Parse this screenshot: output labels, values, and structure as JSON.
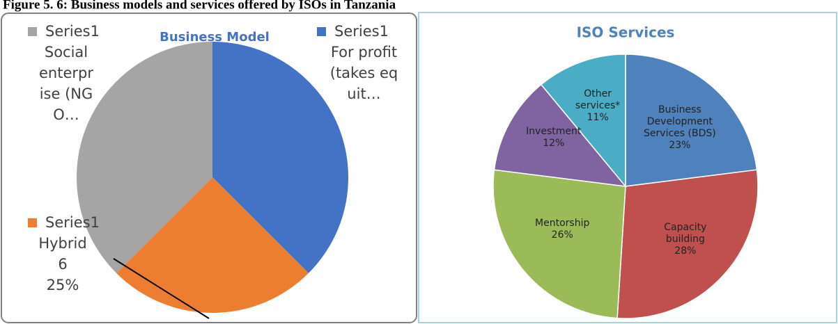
{
  "figure_title": "Figure 5. 6: Business models and services offered by ISOs in Tanzania",
  "chart_data": [
    {
      "type": "pie",
      "title": "Business Model",
      "series_name": "Series1",
      "categories": [
        "For profit (takes equit…",
        "Hybrid",
        "Social enterprise (NGO…"
      ],
      "values": [
        9,
        6,
        9
      ],
      "value_labels": [
        null,
        "6",
        null
      ],
      "percent_labels": [
        null,
        "25%",
        null
      ],
      "colors": [
        "#4472c4",
        "#ed7d31",
        "#a5a5a5"
      ]
    },
    {
      "type": "pie",
      "title": "ISO Services",
      "categories": [
        "Business Development Services (BDS)",
        "Capacity building",
        "Mentorship",
        "Investment",
        "Other services*"
      ],
      "values": [
        23,
        28,
        26,
        12,
        11
      ],
      "value_labels": [
        "23%",
        "28%",
        "26%",
        "12%",
        "11%"
      ],
      "colors": [
        "#4f81bd",
        "#c0504d",
        "#9bbb59",
        "#8064a2",
        "#4bacc6"
      ]
    }
  ]
}
